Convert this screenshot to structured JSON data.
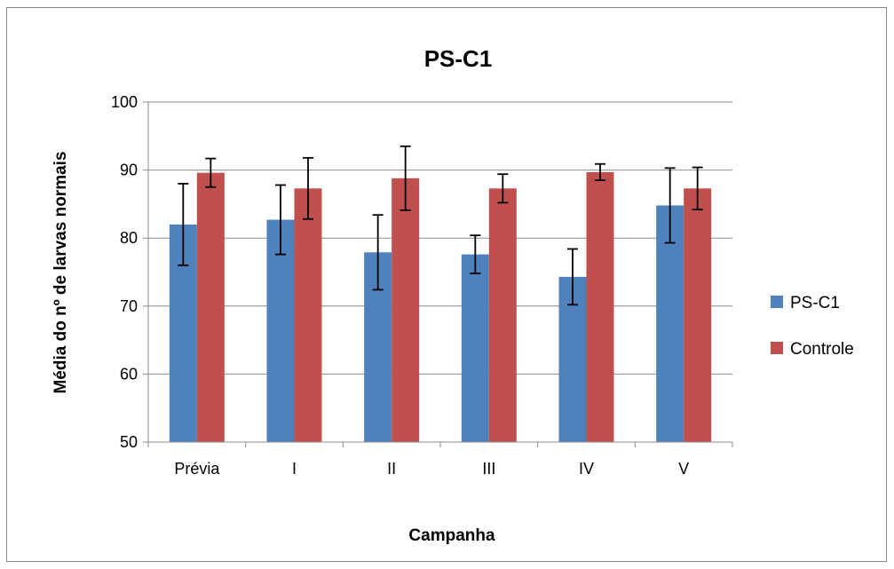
{
  "chart_data": {
    "type": "bar",
    "title": "PS-C1",
    "xlabel": "Campanha",
    "ylabel": "Média do nº de larvas normais",
    "categories": [
      "Prévia",
      "I",
      "II",
      "III",
      "IV",
      "V"
    ],
    "ylim": [
      50,
      100
    ],
    "yticks": [
      50,
      60,
      70,
      80,
      90,
      100
    ],
    "grid": true,
    "legend_position": "right",
    "series": [
      {
        "name": "PS-C1",
        "color": "#4F81BD",
        "values": [
          82.0,
          82.7,
          77.9,
          77.6,
          74.3,
          84.8
        ],
        "error": [
          6.0,
          5.1,
          5.5,
          2.8,
          4.1,
          5.5
        ]
      },
      {
        "name": "Controle",
        "color": "#C0504D",
        "values": [
          89.6,
          87.3,
          88.8,
          87.3,
          89.7,
          87.3
        ],
        "error": [
          2.1,
          4.5,
          4.7,
          2.1,
          1.2,
          3.1
        ]
      }
    ]
  }
}
